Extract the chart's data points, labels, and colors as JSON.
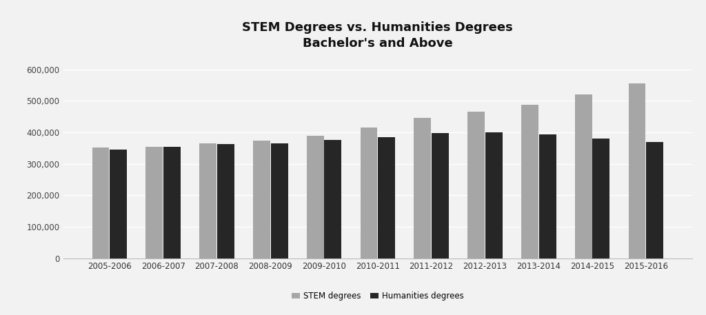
{
  "title_line1": "STEM Degrees vs. Humanities Degrees",
  "title_line2": "Bachelor's and Above",
  "categories": [
    "2005-2006",
    "2006-2007",
    "2007-2008",
    "2008-2009",
    "2009-2010",
    "2010-2011",
    "2011-2012",
    "2012-2013",
    "2013-2014",
    "2014-2015",
    "2015-2016"
  ],
  "stem_values": [
    352000,
    355000,
    365000,
    373000,
    390000,
    415000,
    445000,
    465000,
    488000,
    520000,
    555000
  ],
  "humanities_values": [
    345000,
    353000,
    363000,
    365000,
    375000,
    384000,
    398000,
    400000,
    393000,
    380000,
    370000
  ],
  "stem_color": "#a6a6a6",
  "humanities_color": "#262626",
  "background_color": "#f2f2f2",
  "plot_bg_color": "#f2f2f2",
  "grid_color": "#ffffff",
  "ylim": [
    0,
    640000
  ],
  "yticks": [
    0,
    100000,
    200000,
    300000,
    400000,
    500000,
    600000
  ],
  "legend_labels": [
    "STEM degrees",
    "Humanities degrees"
  ],
  "title_fontsize": 13,
  "tick_fontsize": 8.5,
  "legend_fontsize": 8.5,
  "bar_width": 0.32,
  "bar_gap": 0.01
}
